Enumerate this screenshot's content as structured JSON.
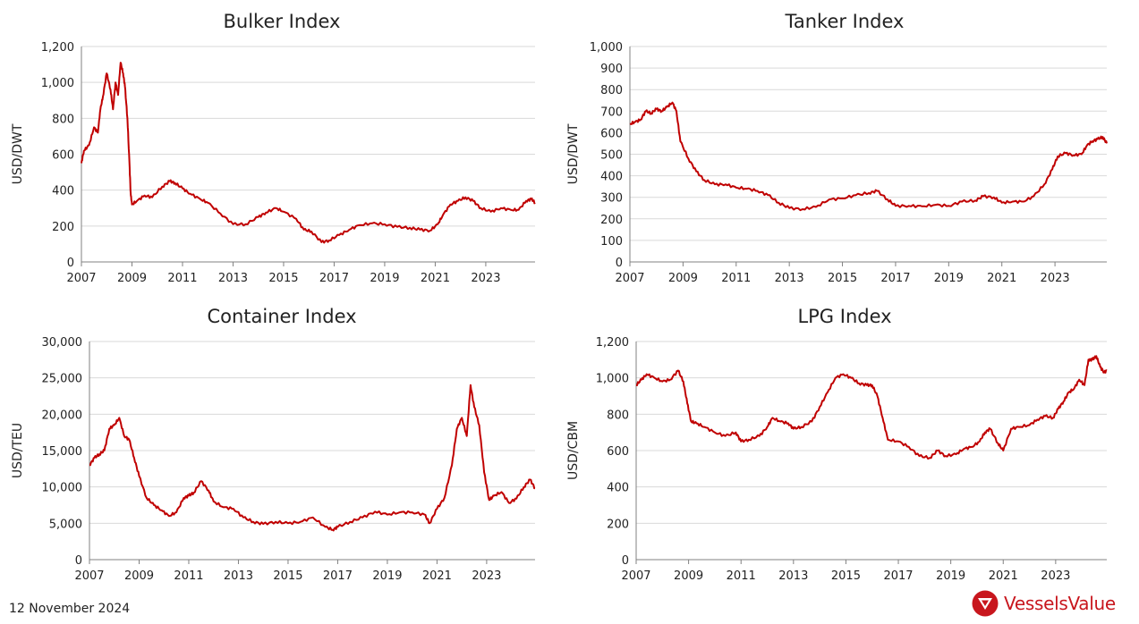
{
  "footer": {
    "date": "12 November 2024",
    "brand": "VesselsValue"
  },
  "colors": {
    "line": "#c00000",
    "grid": "#d9d9d9",
    "axis": "#808080",
    "brand": "#c8161d"
  },
  "chart_data": [
    {
      "type": "line",
      "title": "Bulker Index",
      "ylabel": "USD/DWT",
      "xlabel": "",
      "ylim": [
        0,
        1200
      ],
      "yticks": [
        0,
        200,
        400,
        600,
        800,
        1000,
        1200
      ],
      "ytick_labels": [
        "0",
        "200",
        "400",
        "600",
        "800",
        "1,000",
        "1,200"
      ],
      "xlim": [
        2007,
        2024.95
      ],
      "xticks": [
        2007,
        2009,
        2011,
        2013,
        2015,
        2017,
        2019,
        2021,
        2023
      ],
      "xtick_labels": [
        "2007",
        "2009",
        "2011",
        "2013",
        "2015",
        "2017",
        "2019",
        "2021",
        "2023"
      ],
      "grid": true,
      "series": [
        {
          "x": [
            2007.0,
            2007.1,
            2007.3,
            2007.5,
            2007.65,
            2007.75,
            2007.85,
            2008.0,
            2008.15,
            2008.25,
            2008.35,
            2008.45,
            2008.55,
            2008.65,
            2008.72,
            2008.82,
            2008.9,
            2008.95,
            2009.0,
            2009.2,
            2009.5,
            2009.8,
            2010.2,
            2010.5,
            2010.7,
            2011.0,
            2011.3,
            2011.7,
            2012.0,
            2012.5,
            2013.0,
            2013.5,
            2014.0,
            2014.3,
            2014.7,
            2015.0,
            2015.5,
            2015.8,
            2016.1,
            2016.5,
            2016.8,
            2017.2,
            2017.6,
            2018.0,
            2018.5,
            2019.0,
            2019.5,
            2020.0,
            2020.4,
            2020.8,
            2021.1,
            2021.3,
            2021.6,
            2021.9,
            2022.2,
            2022.5,
            2022.8,
            2023.2,
            2023.6,
            2024.0,
            2024.3,
            2024.6,
            2024.8,
            2024.95
          ],
          "y": [
            550,
            620,
            650,
            750,
            720,
            850,
            920,
            1050,
            960,
            850,
            1000,
            930,
            1110,
            1050,
            980,
            800,
            550,
            380,
            320,
            340,
            370,
            360,
            420,
            450,
            440,
            410,
            380,
            350,
            330,
            270,
            210,
            210,
            250,
            275,
            300,
            280,
            240,
            180,
            170,
            110,
            120,
            150,
            180,
            205,
            215,
            210,
            195,
            190,
            180,
            175,
            210,
            260,
            320,
            340,
            360,
            340,
            300,
            280,
            300,
            290,
            290,
            340,
            350,
            330
          ]
        }
      ]
    },
    {
      "type": "line",
      "title": "Tanker Index",
      "ylabel": "USD/DWT",
      "xlabel": "",
      "ylim": [
        0,
        1000
      ],
      "yticks": [
        0,
        100,
        200,
        300,
        400,
        500,
        600,
        700,
        800,
        900,
        1000
      ],
      "ytick_labels": [
        "0",
        "100",
        "200",
        "300",
        "400",
        "500",
        "600",
        "700",
        "800",
        "900",
        "1,000"
      ],
      "xlim": [
        2007,
        2024.95
      ],
      "xticks": [
        2007,
        2009,
        2011,
        2013,
        2015,
        2017,
        2019,
        2021,
        2023
      ],
      "xtick_labels": [
        "2007",
        "2009",
        "2011",
        "2013",
        "2015",
        "2017",
        "2019",
        "2021",
        "2023"
      ],
      "grid": true,
      "series": [
        {
          "x": [
            2007.0,
            2007.2,
            2007.4,
            2007.6,
            2007.8,
            2008.0,
            2008.2,
            2008.4,
            2008.6,
            2008.75,
            2008.9,
            2009.2,
            2009.5,
            2009.8,
            2010.2,
            2010.6,
            2011.0,
            2011.4,
            2011.8,
            2012.2,
            2012.6,
            2013.0,
            2013.5,
            2014.0,
            2014.5,
            2015.0,
            2015.5,
            2016.0,
            2016.3,
            2016.7,
            2017.0,
            2017.5,
            2018.0,
            2018.5,
            2019.0,
            2019.5,
            2020.0,
            2020.3,
            2020.7,
            2021.0,
            2021.4,
            2021.8,
            2022.2,
            2022.6,
            2022.9,
            2023.1,
            2023.4,
            2023.7,
            2024.0,
            2024.2,
            2024.4,
            2024.6,
            2024.8,
            2024.95
          ],
          "y": [
            640,
            650,
            660,
            700,
            690,
            710,
            700,
            720,
            740,
            700,
            560,
            480,
            420,
            380,
            360,
            360,
            345,
            340,
            330,
            310,
            275,
            250,
            245,
            255,
            290,
            295,
            310,
            320,
            330,
            290,
            260,
            260,
            258,
            265,
            260,
            280,
            285,
            305,
            300,
            275,
            280,
            280,
            305,
            360,
            430,
            490,
            505,
            495,
            500,
            540,
            560,
            570,
            580,
            550
          ]
        }
      ]
    },
    {
      "type": "line",
      "title": "Container Index",
      "ylabel": "USD/TEU",
      "xlabel": "",
      "ylim": [
        0,
        30000
      ],
      "yticks": [
        0,
        5000,
        10000,
        15000,
        20000,
        25000,
        30000
      ],
      "ytick_labels": [
        "0",
        "5,000",
        "10,000",
        "15,000",
        "20,000",
        "25,000",
        "30,000"
      ],
      "xlim": [
        2007,
        2024.95
      ],
      "xticks": [
        2007,
        2009,
        2011,
        2013,
        2015,
        2017,
        2019,
        2021,
        2023
      ],
      "xtick_labels": [
        "2007",
        "2009",
        "2011",
        "2013",
        "2015",
        "2017",
        "2019",
        "2021",
        "2023"
      ],
      "grid": true,
      "series": [
        {
          "x": [
            2007.0,
            2007.2,
            2007.4,
            2007.6,
            2007.8,
            2008.0,
            2008.2,
            2008.4,
            2008.6,
            2008.8,
            2009.0,
            2009.3,
            2009.6,
            2009.9,
            2010.2,
            2010.5,
            2010.8,
            2011.0,
            2011.2,
            2011.5,
            2011.8,
            2012.0,
            2012.4,
            2012.8,
            2013.2,
            2013.6,
            2014.0,
            2014.5,
            2015.0,
            2015.5,
            2016.0,
            2016.5,
            2016.8,
            2017.0,
            2017.5,
            2018.0,
            2018.5,
            2019.0,
            2019.5,
            2020.0,
            2020.5,
            2020.7,
            2021.0,
            2021.3,
            2021.6,
            2021.8,
            2022.0,
            2022.2,
            2022.35,
            2022.5,
            2022.7,
            2022.9,
            2023.1,
            2023.3,
            2023.6,
            2023.9,
            2024.2,
            2024.5,
            2024.75,
            2024.95
          ],
          "y": [
            13000,
            14000,
            14500,
            15000,
            18000,
            18500,
            19500,
            17000,
            16500,
            14000,
            11500,
            8500,
            7500,
            6800,
            6000,
            6500,
            8500,
            8800,
            9200,
            10800,
            9500,
            8000,
            7200,
            7000,
            5800,
            5200,
            4900,
            5200,
            5000,
            5200,
            5800,
            4500,
            4100,
            4500,
            5200,
            5800,
            6600,
            6200,
            6500,
            6500,
            6200,
            5000,
            7000,
            8500,
            13000,
            18000,
            19500,
            17000,
            24000,
            21000,
            18500,
            12000,
            8200,
            8800,
            9300,
            7800,
            8400,
            10000,
            11000,
            9800
          ]
        }
      ]
    },
    {
      "type": "line",
      "title": "LPG Index",
      "ylabel": "USD/CBM",
      "xlabel": "",
      "ylim": [
        0,
        1200
      ],
      "yticks": [
        0,
        200,
        400,
        600,
        800,
        1000,
        1200
      ],
      "ytick_labels": [
        "0",
        "200",
        "400",
        "600",
        "800",
        "1,000",
        "1,200"
      ],
      "xlim": [
        2007,
        2024.95
      ],
      "xticks": [
        2007,
        2009,
        2011,
        2013,
        2015,
        2017,
        2019,
        2021,
        2023
      ],
      "xtick_labels": [
        "2007",
        "2009",
        "2011",
        "2013",
        "2015",
        "2017",
        "2019",
        "2021",
        "2023"
      ],
      "grid": true,
      "series": [
        {
          "x": [
            2007.0,
            2007.2,
            2007.4,
            2007.7,
            2008.0,
            2008.3,
            2008.6,
            2008.8,
            2008.95,
            2009.1,
            2009.3,
            2009.6,
            2010.0,
            2010.4,
            2010.8,
            2011.0,
            2011.3,
            2011.7,
            2012.0,
            2012.2,
            2012.5,
            2012.8,
            2013.0,
            2013.3,
            2013.7,
            2014.0,
            2014.3,
            2014.6,
            2014.9,
            2015.2,
            2015.5,
            2015.8,
            2016.0,
            2016.2,
            2016.4,
            2016.6,
            2017.0,
            2017.4,
            2017.8,
            2018.2,
            2018.5,
            2018.8,
            2019.2,
            2019.5,
            2019.8,
            2020.1,
            2020.3,
            2020.5,
            2020.8,
            2021.0,
            2021.3,
            2021.6,
            2022.0,
            2022.3,
            2022.6,
            2022.9,
            2023.1,
            2023.3,
            2023.5,
            2023.7,
            2023.9,
            2024.1,
            2024.25,
            2024.4,
            2024.55,
            2024.7,
            2024.85,
            2024.95
          ],
          "y": [
            960,
            990,
            1020,
            1000,
            980,
            990,
            1040,
            980,
            860,
            760,
            750,
            730,
            700,
            680,
            700,
            650,
            660,
            680,
            730,
            780,
            760,
            750,
            720,
            730,
            760,
            840,
            920,
            1000,
            1020,
            1000,
            970,
            960,
            960,
            900,
            780,
            660,
            650,
            620,
            570,
            560,
            600,
            570,
            580,
            610,
            620,
            650,
            700,
            720,
            640,
            600,
            720,
            730,
            740,
            770,
            790,
            780,
            830,
            870,
            920,
            940,
            990,
            960,
            1100,
            1100,
            1120,
            1060,
            1030,
            1040
          ]
        }
      ]
    }
  ]
}
